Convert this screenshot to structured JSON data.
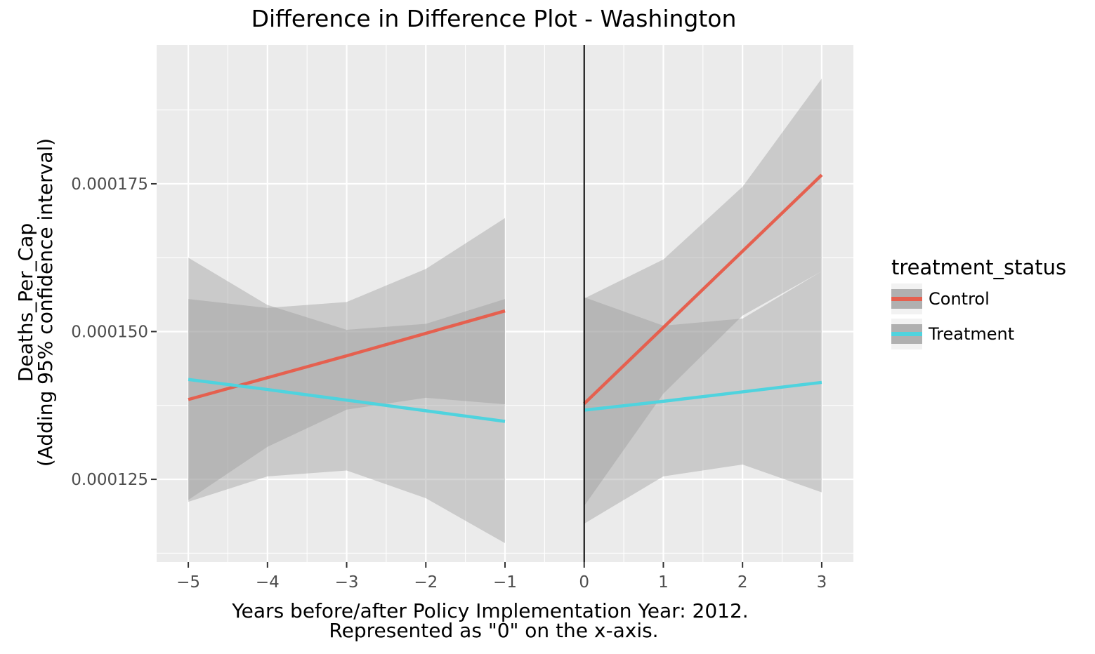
{
  "chart_data": {
    "type": "line",
    "title": "Difference in Difference Plot - Washington",
    "xlabel_line1": "Years before/after Policy Implementation Year: 2012.",
    "xlabel_line2": "Represented as \"0\" on the x-axis.",
    "ylabel_line1": "Deaths_Per_Cap",
    "ylabel_line2": "(Adding 95% confidence interval)",
    "xlim": [
      -5.4,
      3.4
    ],
    "ylim": [
      0.000111,
      0.0001985
    ],
    "x_ticks": [
      -5,
      -4,
      -3,
      -2,
      -1,
      0,
      1,
      2,
      3
    ],
    "x_tick_labels": [
      "−5",
      "−4",
      "−3",
      "−2",
      "−1",
      "0",
      "1",
      "2",
      "3"
    ],
    "y_ticks": [
      0.000125,
      0.00015,
      0.000175
    ],
    "y_tick_labels": [
      "0.000125",
      "0.000150",
      "0.000175"
    ],
    "vline_x": 0,
    "legend": {
      "title": "treatment_status",
      "position": "right",
      "entries": [
        {
          "label": "Control",
          "color": "#e5604f"
        },
        {
          "label": "Treatment",
          "color": "#4fd3de"
        }
      ]
    },
    "colors": {
      "panel": "#ebebeb",
      "grid": "#ffffff",
      "ribbon": "#999999",
      "vline": "#000000"
    },
    "series": [
      {
        "name": "Control",
        "color": "#e5604f",
        "segment": "pre",
        "x": [
          -5,
          -4,
          -3,
          -2,
          -1
        ],
        "y": [
          0.0001385,
          0.0001422,
          0.0001459,
          0.0001497,
          0.0001535
        ],
        "ci_low": [
          0.0001215,
          0.0001305,
          0.0001368,
          0.0001388,
          0.0001377
        ],
        "ci_high": [
          0.0001555,
          0.000154,
          0.000155,
          0.0001606,
          0.0001692
        ]
      },
      {
        "name": "Treatment",
        "color": "#4fd3de",
        "segment": "pre",
        "x": [
          -5,
          -4,
          -3,
          -2,
          -1
        ],
        "y": [
          0.0001419,
          0.0001402,
          0.0001384,
          0.0001366,
          0.0001348
        ],
        "ci_low": [
          0.0001212,
          0.0001255,
          0.0001265,
          0.0001218,
          0.0001142
        ],
        "ci_high": [
          0.0001625,
          0.0001545,
          0.0001503,
          0.0001513,
          0.0001555
        ]
      },
      {
        "name": "Control",
        "color": "#e5604f",
        "segment": "post",
        "x": [
          0,
          1,
          2,
          3
        ],
        "y": [
          0.0001378,
          0.0001507,
          0.0001636,
          0.0001765
        ],
        "ci_low": [
          0.0001205,
          0.0001395,
          0.0001527,
          0.0001602
        ],
        "ci_high": [
          0.0001556,
          0.0001622,
          0.0001745,
          0.0001928
        ]
      },
      {
        "name": "Treatment",
        "color": "#4fd3de",
        "segment": "post",
        "x": [
          0,
          1,
          2,
          3
        ],
        "y": [
          0.0001367,
          0.0001382,
          0.0001398,
          0.0001414
        ],
        "ci_low": [
          0.0001175,
          0.0001255,
          0.0001275,
          0.0001228
        ],
        "ci_high": [
          0.0001558,
          0.000151,
          0.0001522,
          0.0001602
        ]
      }
    ]
  }
}
